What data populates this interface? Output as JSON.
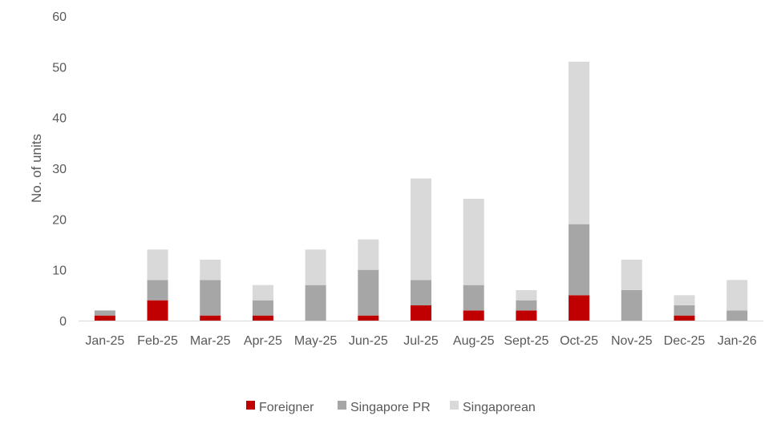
{
  "chart_data": {
    "type": "bar",
    "stacked": true,
    "ylabel": "No. of units",
    "xlabel": "",
    "ylim": [
      0,
      60
    ],
    "yticks": [
      0,
      10,
      20,
      30,
      40,
      50,
      60
    ],
    "grid": false,
    "legend_position": "bottom",
    "categories": [
      "Jan-25",
      "Feb-25",
      "Mar-25",
      "Apr-25",
      "May-25",
      "Jun-25",
      "Jul-25",
      "Aug-25",
      "Sept-25",
      "Oct-25",
      "Nov-25",
      "Dec-25",
      "Jan-26"
    ],
    "series": [
      {
        "name": "Foreigner",
        "color": "#c00000",
        "values": [
          1,
          4,
          1,
          1,
          0,
          1,
          3,
          2,
          2,
          5,
          0,
          1,
          0
        ]
      },
      {
        "name": "Singapore PR",
        "color": "#a6a6a6",
        "values": [
          1,
          4,
          7,
          3,
          7,
          9,
          5,
          5,
          2,
          14,
          6,
          2,
          2
        ]
      },
      {
        "name": "Singaporean",
        "color": "#d9d9d9",
        "values": [
          0,
          6,
          4,
          3,
          7,
          6,
          20,
          17,
          2,
          32,
          6,
          2,
          6
        ]
      }
    ]
  }
}
